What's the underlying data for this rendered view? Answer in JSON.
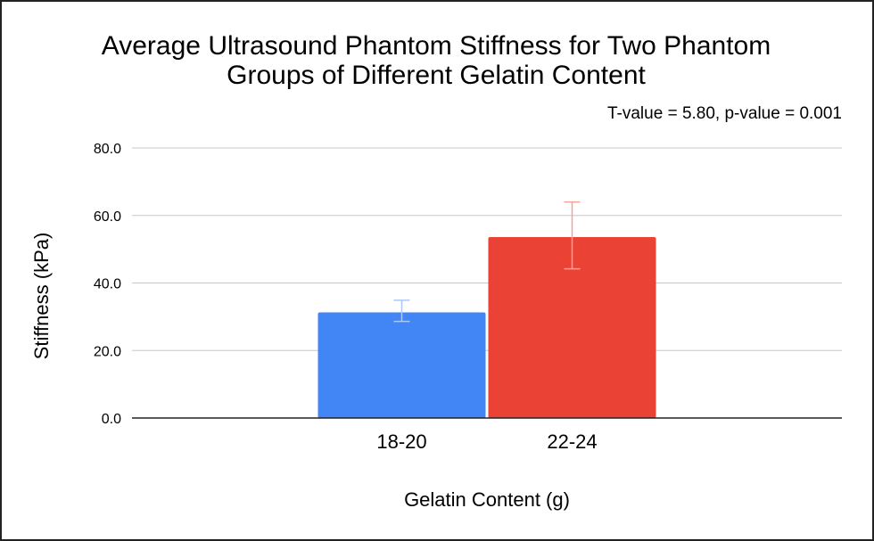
{
  "chart_data": {
    "type": "bar",
    "title_lines": [
      "Average Ultrasound Phantom Stiffness for Two Phantom",
      "Groups of Different Gelatin Content"
    ],
    "annotation": "T-value = 5.80, p-value = 0.001",
    "xlabel": "Gelatin Content (g)",
    "ylabel": "Stiffness (kPa)",
    "categories": [
      "18-20",
      "22-24"
    ],
    "values": [
      31.3,
      53.6
    ],
    "error_low": [
      28.6,
      44.2
    ],
    "error_high": [
      34.9,
      64.0
    ],
    "colors": [
      "#4285f4",
      "#ea4335"
    ],
    "error_colors": [
      "#a9c8f7",
      "#f4a39b"
    ],
    "ylim": [
      0,
      80
    ],
    "yticks": [
      0,
      20,
      40,
      60,
      80
    ],
    "ytick_labels": [
      "0.0",
      "20.0",
      "40.0",
      "60.0",
      "80.0"
    ],
    "grid": true,
    "legend": "none"
  }
}
